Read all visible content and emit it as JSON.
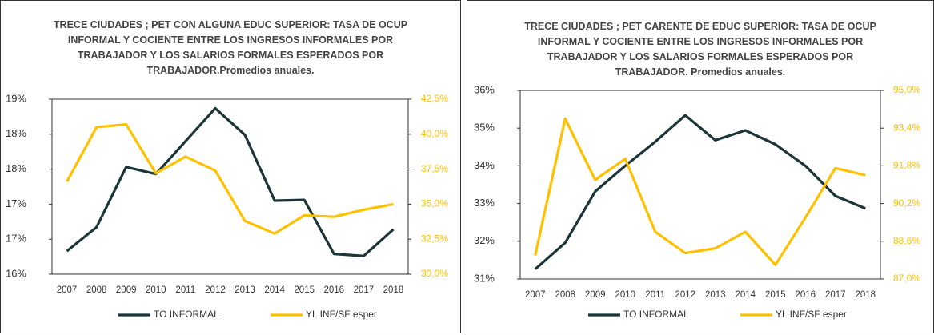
{
  "chart_data": [
    {
      "type": "line",
      "title": "TRECE CIUDADES ; PET CON ALGUNA EDUC SUPERIOR: TASA DE OCUP INFORMAL Y COCIENTE ENTRE LOS INGRESOS INFORMALES POR TRABAJADOR Y LOS SALARIOS FORMALES ESPERADOS POR TRABAJADOR.Promedios anuales.",
      "categories": [
        "2007",
        "2008",
        "2009",
        "2010",
        "2011",
        "2012",
        "2013",
        "2014",
        "2015",
        "2016",
        "2017",
        "2018"
      ],
      "series": [
        {
          "name": "TO INFORMAL",
          "color": "#1c3538",
          "values": [
            16.73,
            17.07,
            17.93,
            17.83,
            18.3,
            18.77,
            18.39,
            17.45,
            17.46,
            16.69,
            16.66,
            17.04
          ]
        },
        {
          "name": "YL INF/SF esper",
          "color": "#ffc000",
          "axis": "y2",
          "values": [
            36.6,
            40.5,
            40.7,
            37.2,
            38.4,
            37.4,
            33.8,
            32.9,
            34.2,
            34.1,
            34.6,
            35.0
          ]
        }
      ],
      "ylim": [
        16.4,
        18.9
      ],
      "yticks": [
        {
          "value": 16.4,
          "label": "16%"
        },
        {
          "value": 16.9,
          "label": "17%"
        },
        {
          "value": 17.4,
          "label": "17%"
        },
        {
          "value": 17.9,
          "label": "18%"
        },
        {
          "value": 18.4,
          "label": "18%"
        },
        {
          "value": 18.9,
          "label": "19%"
        }
      ],
      "y2lim": [
        30.0,
        42.5
      ],
      "y2ticks": [
        {
          "value": 30.0,
          "label": "30,0%"
        },
        {
          "value": 32.5,
          "label": "32,5%"
        },
        {
          "value": 35.0,
          "label": "35,0%"
        },
        {
          "value": 37.5,
          "label": "37,5%"
        },
        {
          "value": 40.0,
          "label": "40,0%"
        },
        {
          "value": 42.5,
          "label": "42,5%"
        }
      ]
    },
    {
      "type": "line",
      "title": "TRECE CIUDADES ; PET CARENTE DE EDUC SUPERIOR: TASA DE OCUP INFORMAL Y COCIENTE ENTRE LOS INGRESOS INFORMALES POR TRABAJADOR Y LOS SALARIOS FORMALES ESPERADOS POR TRABAJADOR. Promedios anuales.",
      "categories": [
        "2007",
        "2008",
        "2009",
        "2010",
        "2011",
        "2012",
        "2013",
        "2014",
        "2015",
        "2016",
        "2017",
        "2018"
      ],
      "series": [
        {
          "name": "TO INFORMAL",
          "color": "#1c3538",
          "values": [
            31.26,
            31.96,
            33.32,
            34.0,
            34.64,
            35.34,
            34.68,
            34.94,
            34.57,
            34.0,
            33.2,
            32.87
          ]
        },
        {
          "name": "YL INF/SF esper",
          "color": "#ffc000",
          "axis": "y2",
          "values": [
            88.0,
            93.8,
            91.2,
            92.1,
            89.0,
            88.1,
            88.3,
            89.0,
            87.6,
            89.6,
            91.7,
            91.4
          ]
        }
      ],
      "ylim": [
        31,
        36
      ],
      "yticks": [
        {
          "value": 31,
          "label": "31%"
        },
        {
          "value": 32,
          "label": "32%"
        },
        {
          "value": 33,
          "label": "33%"
        },
        {
          "value": 34,
          "label": "34%"
        },
        {
          "value": 35,
          "label": "35%"
        },
        {
          "value": 36,
          "label": "36%"
        }
      ],
      "y2lim": [
        87.0,
        95.0
      ],
      "y2ticks": [
        {
          "value": 87.0,
          "label": "87,0%"
        },
        {
          "value": 88.6,
          "label": "88,6%"
        },
        {
          "value": 90.2,
          "label": "90,2%"
        },
        {
          "value": 91.8,
          "label": "91,8%"
        },
        {
          "value": 93.4,
          "label": "93,4%"
        },
        {
          "value": 95.0,
          "label": "95,0%"
        }
      ]
    }
  ]
}
